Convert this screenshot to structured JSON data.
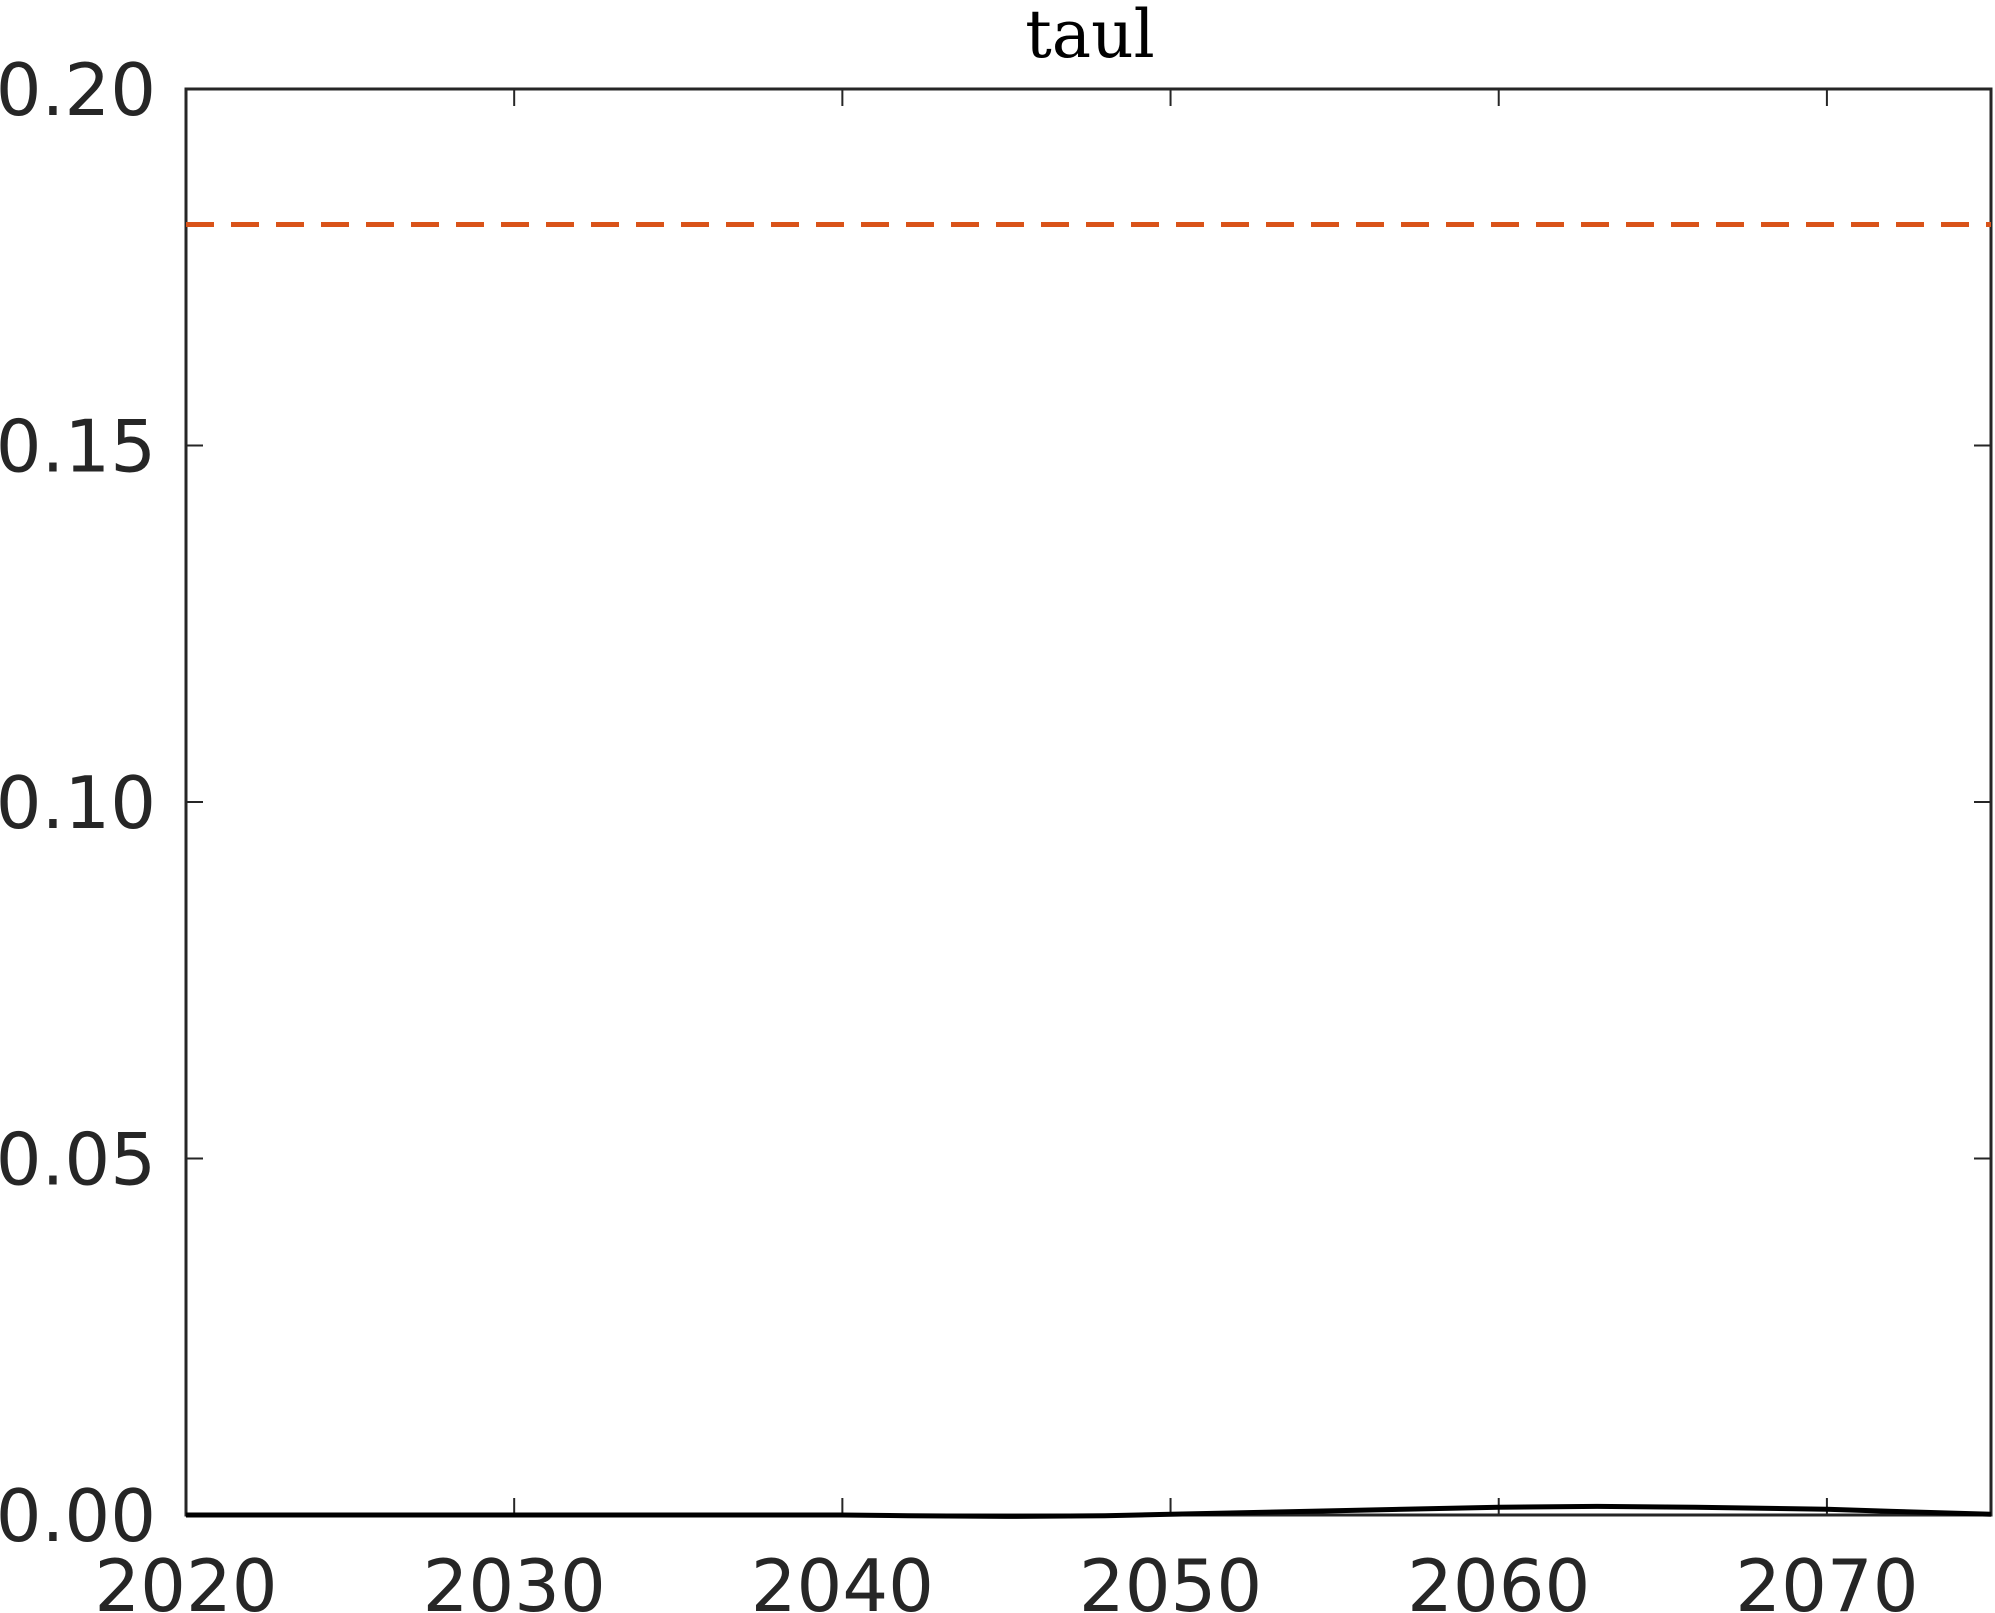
{
  "chart_data": {
    "type": "line",
    "title": "taul",
    "xlabel": "",
    "ylabel": "",
    "xlim": [
      2020,
      2075
    ],
    "ylim": [
      0,
      0.2
    ],
    "xticks": [
      2020,
      2030,
      2040,
      2050,
      2060,
      2070
    ],
    "xtick_labels": [
      "2020",
      "2030",
      "2040",
      "2050",
      "2060",
      "2070"
    ],
    "yticks": [
      0,
      0.05,
      0.1,
      0.15,
      0.2
    ],
    "ytick_labels": [
      "0.00",
      "0.05",
      "0.10",
      "0.15",
      "0.20"
    ],
    "grid": false,
    "legend": "none",
    "series": [
      {
        "style": "solid",
        "color": "#000000",
        "x": [
          2020,
          2025,
          2030,
          2035,
          2040,
          2042,
          2045,
          2048,
          2050,
          2052,
          2055,
          2058,
          2060,
          2063,
          2066,
          2070,
          2072,
          2075
        ],
        "y": [
          0.0,
          0.0,
          0.0,
          0.0,
          0.0,
          -0.0001,
          -0.0002,
          -0.0001,
          0.0001,
          0.0003,
          0.0006,
          0.0009,
          0.0011,
          0.0012,
          0.0011,
          0.0008,
          0.0005,
          0.0001
        ]
      },
      {
        "style": "dashed",
        "color": "#d95319",
        "x": [
          2020,
          2075
        ],
        "y": [
          0.181,
          0.181
        ]
      }
    ]
  }
}
